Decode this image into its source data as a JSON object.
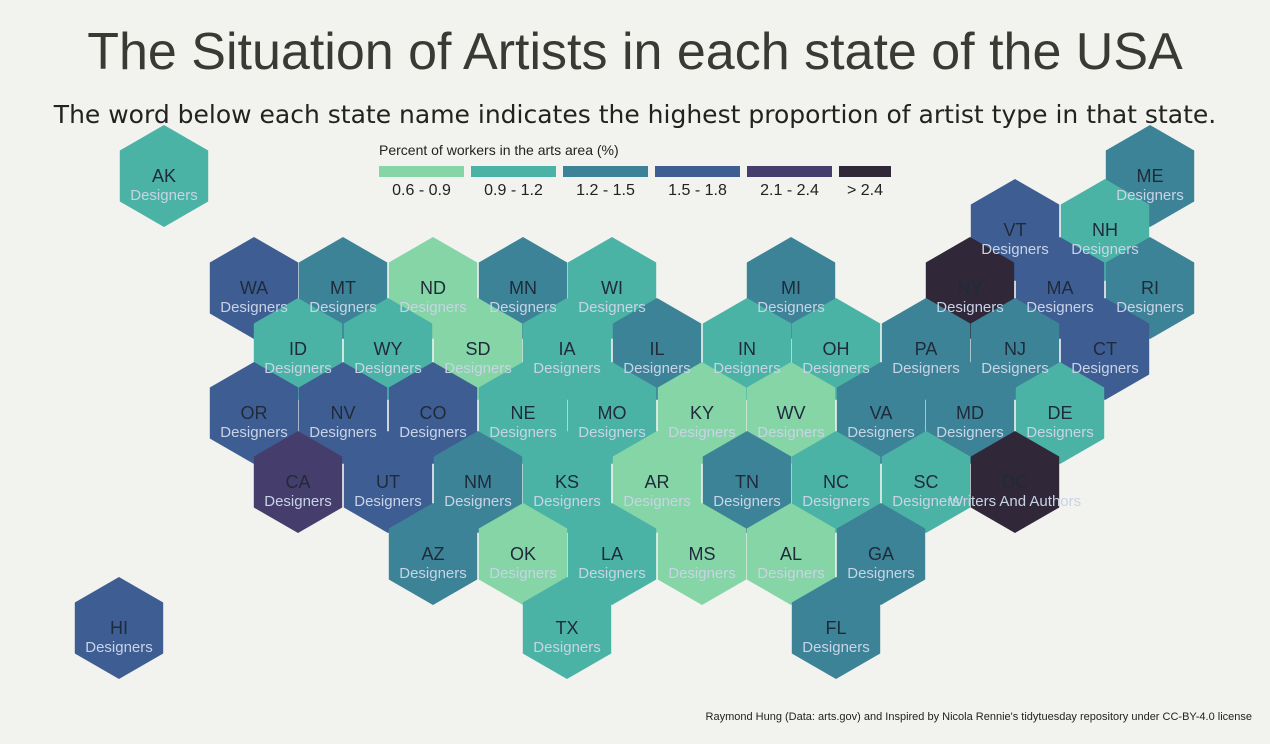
{
  "title": "The Situation of Artists in each state of the USA",
  "subtitle": "The word below each state name indicates the highest proportion of artist type in that state.",
  "legend": {
    "title": "Percent of workers in the arts area (%)",
    "items": [
      {
        "label": "0.6 - 0.9",
        "color": "#86d5a7"
      },
      {
        "label": "0.9 - 1.2",
        "color": "#4bb3a5"
      },
      {
        "label": "1.2 - 1.5",
        "color": "#3d8397"
      },
      {
        "label": "1.5 - 1.8",
        "color": "#3e5e93"
      },
      {
        "label": "2.1 - 2.4",
        "color": "#453e6d"
      },
      {
        "label": "> 2.4",
        "color": "#302839"
      }
    ]
  },
  "states": [
    {
      "abbr": "AK",
      "type": "Designers",
      "bin": 1
    },
    {
      "abbr": "ME",
      "type": "Designers",
      "bin": 2
    },
    {
      "abbr": "VT",
      "type": "Designers",
      "bin": 3
    },
    {
      "abbr": "NH",
      "type": "Designers",
      "bin": 1
    },
    {
      "abbr": "WA",
      "type": "Designers",
      "bin": 3
    },
    {
      "abbr": "MT",
      "type": "Designers",
      "bin": 2
    },
    {
      "abbr": "ND",
      "type": "Designers",
      "bin": 0
    },
    {
      "abbr": "MN",
      "type": "Designers",
      "bin": 2
    },
    {
      "abbr": "WI",
      "type": "Designers",
      "bin": 1
    },
    {
      "abbr": "MI",
      "type": "Designers",
      "bin": 2
    },
    {
      "abbr": "NY",
      "type": "Designers",
      "bin": 5
    },
    {
      "abbr": "MA",
      "type": "Designers",
      "bin": 3
    },
    {
      "abbr": "RI",
      "type": "Designers",
      "bin": 2
    },
    {
      "abbr": "ID",
      "type": "Designers",
      "bin": 1
    },
    {
      "abbr": "WY",
      "type": "Designers",
      "bin": 1
    },
    {
      "abbr": "SD",
      "type": "Designers",
      "bin": 0
    },
    {
      "abbr": "IA",
      "type": "Designers",
      "bin": 1
    },
    {
      "abbr": "IL",
      "type": "Designers",
      "bin": 2
    },
    {
      "abbr": "IN",
      "type": "Designers",
      "bin": 1
    },
    {
      "abbr": "OH",
      "type": "Designers",
      "bin": 1
    },
    {
      "abbr": "PA",
      "type": "Designers",
      "bin": 2
    },
    {
      "abbr": "NJ",
      "type": "Designers",
      "bin": 2
    },
    {
      "abbr": "CT",
      "type": "Designers",
      "bin": 3
    },
    {
      "abbr": "OR",
      "type": "Designers",
      "bin": 3
    },
    {
      "abbr": "NV",
      "type": "Designers",
      "bin": 3
    },
    {
      "abbr": "CO",
      "type": "Designers",
      "bin": 3
    },
    {
      "abbr": "NE",
      "type": "Designers",
      "bin": 1
    },
    {
      "abbr": "MO",
      "type": "Designers",
      "bin": 1
    },
    {
      "abbr": "KY",
      "type": "Designers",
      "bin": 0
    },
    {
      "abbr": "WV",
      "type": "Designers",
      "bin": 0
    },
    {
      "abbr": "VA",
      "type": "Designers",
      "bin": 2
    },
    {
      "abbr": "MD",
      "type": "Designers",
      "bin": 2
    },
    {
      "abbr": "DE",
      "type": "Designers",
      "bin": 1
    },
    {
      "abbr": "CA",
      "type": "Designers",
      "bin": 4
    },
    {
      "abbr": "UT",
      "type": "Designers",
      "bin": 3
    },
    {
      "abbr": "NM",
      "type": "Designers",
      "bin": 2
    },
    {
      "abbr": "KS",
      "type": "Designers",
      "bin": 1
    },
    {
      "abbr": "AR",
      "type": "Designers",
      "bin": 0
    },
    {
      "abbr": "TN",
      "type": "Designers",
      "bin": 2
    },
    {
      "abbr": "NC",
      "type": "Designers",
      "bin": 1
    },
    {
      "abbr": "SC",
      "type": "Designers",
      "bin": 1
    },
    {
      "abbr": "DC",
      "type": "Writers And Authors",
      "bin": 5
    },
    {
      "abbr": "AZ",
      "type": "Designers",
      "bin": 2
    },
    {
      "abbr": "OK",
      "type": "Designers",
      "bin": 0
    },
    {
      "abbr": "LA",
      "type": "Designers",
      "bin": 1
    },
    {
      "abbr": "MS",
      "type": "Designers",
      "bin": 0
    },
    {
      "abbr": "AL",
      "type": "Designers",
      "bin": 0
    },
    {
      "abbr": "GA",
      "type": "Designers",
      "bin": 2
    },
    {
      "abbr": "HI",
      "type": "Designers",
      "bin": 3
    },
    {
      "abbr": "TX",
      "type": "Designers",
      "bin": 1
    },
    {
      "abbr": "FL",
      "type": "Designers",
      "bin": 2
    }
  ],
  "caption": "Raymond Hung (Data: arts.gov) and Inspired by Nicola Rennie's tidytuesday repository under CC-BY-4.0 license"
}
